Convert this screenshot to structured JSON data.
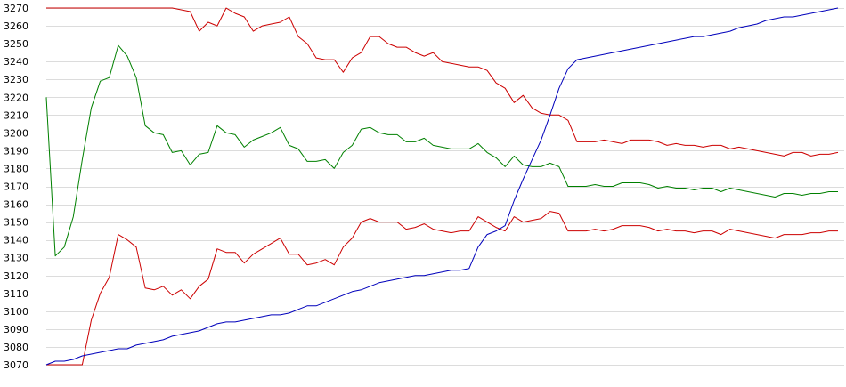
{
  "chart_data": {
    "type": "line",
    "title": "",
    "xlabel": "",
    "ylabel": "",
    "ylim": [
      3070,
      3270
    ],
    "y_ticks": [
      3070,
      3080,
      3090,
      3100,
      3110,
      3120,
      3130,
      3140,
      3150,
      3160,
      3170,
      3180,
      3190,
      3200,
      3210,
      3220,
      3230,
      3240,
      3250,
      3260,
      3270
    ],
    "y_tick_labels": [
      "3070",
      "3080",
      "3090",
      "3100",
      "3110",
      "3120",
      "3130",
      "3140",
      "3150",
      "3160",
      "3170",
      "3180",
      "3190",
      "3200",
      "3210",
      "3220",
      "3230",
      "3240",
      "3250",
      "3260",
      "3270"
    ],
    "x_range": [
      0,
      88
    ],
    "grid": "horizontal",
    "legend": "none",
    "series": [
      {
        "color": "#cc0000",
        "values": [
          3270,
          3270,
          3270,
          3270,
          3270,
          3270,
          3270,
          3270,
          3270,
          3270,
          3270,
          3270,
          3270,
          3270,
          3270,
          3269,
          3268,
          3257,
          3262,
          3260,
          3270,
          3267,
          3265,
          3257,
          3260,
          3261,
          3262,
          3265,
          3254,
          3250,
          3242,
          3241,
          3241,
          3234,
          3242,
          3245,
          3254,
          3254,
          3250,
          3248,
          3248,
          3245,
          3243,
          3245,
          3240,
          3239,
          3238,
          3237,
          3237,
          3235,
          3228,
          3225,
          3217,
          3221,
          3214,
          3211,
          3210,
          3210,
          3207,
          3195,
          3195,
          3195,
          3196,
          3195,
          3194,
          3196,
          3196,
          3196,
          3195,
          3193,
          3194,
          3193,
          3193,
          3192,
          3193,
          3193,
          3191,
          3192,
          3191,
          3190,
          3189,
          3188,
          3187,
          3189,
          3189,
          3187,
          3188,
          3188,
          3189
        ]
      },
      {
        "color": "#008000",
        "values": [
          3220,
          3131,
          3136,
          3153,
          3185,
          3214,
          3229,
          3231,
          3249,
          3243,
          3231,
          3204,
          3200,
          3199,
          3189,
          3190,
          3182,
          3188,
          3189,
          3204,
          3200,
          3199,
          3192,
          3196,
          3198,
          3200,
          3203,
          3193,
          3191,
          3184,
          3184,
          3185,
          3180,
          3189,
          3193,
          3202,
          3203,
          3200,
          3199,
          3199,
          3195,
          3195,
          3197,
          3193,
          3192,
          3191,
          3191,
          3191,
          3194,
          3189,
          3186,
          3181,
          3187,
          3182,
          3181,
          3181,
          3183,
          3181,
          3170,
          3170,
          3170,
          3171,
          3170,
          3170,
          3172,
          3172,
          3172,
          3171,
          3169,
          3170,
          3169,
          3169,
          3168,
          3169,
          3169,
          3167,
          3169,
          3168,
          3167,
          3166,
          3165,
          3164,
          3166,
          3166,
          3165,
          3166,
          3166,
          3167,
          3167
        ]
      },
      {
        "color": "#cc0000",
        "values": [
          3070,
          3070,
          3070,
          3070,
          3070,
          3095,
          3110,
          3119,
          3143,
          3140,
          3136,
          3113,
          3112,
          3114,
          3109,
          3112,
          3107,
          3114,
          3118,
          3135,
          3133,
          3133,
          3127,
          3132,
          3135,
          3138,
          3141,
          3132,
          3132,
          3126,
          3127,
          3129,
          3126,
          3136,
          3141,
          3150,
          3152,
          3150,
          3150,
          3150,
          3146,
          3147,
          3149,
          3146,
          3145,
          3144,
          3145,
          3145,
          3153,
          3150,
          3147,
          3145,
          3153,
          3150,
          3151,
          3152,
          3156,
          3155,
          3145,
          3145,
          3145,
          3146,
          3145,
          3146,
          3148,
          3148,
          3148,
          3147,
          3145,
          3146,
          3145,
          3145,
          3144,
          3145,
          3145,
          3143,
          3146,
          3145,
          3144,
          3143,
          3142,
          3141,
          3143,
          3143,
          3143,
          3144,
          3144,
          3145,
          3145
        ]
      },
      {
        "color": "#0000bb",
        "values": [
          3070,
          3072,
          3072,
          3073,
          3075,
          3076,
          3077,
          3078,
          3079,
          3079,
          3081,
          3082,
          3083,
          3084,
          3086,
          3087,
          3088,
          3089,
          3091,
          3093,
          3094,
          3094,
          3095,
          3096,
          3097,
          3098,
          3098,
          3099,
          3101,
          3103,
          3103,
          3105,
          3107,
          3109,
          3111,
          3112,
          3114,
          3116,
          3117,
          3118,
          3119,
          3120,
          3120,
          3121,
          3122,
          3123,
          3123,
          3124,
          3136,
          3143,
          3145,
          3148,
          3162,
          3174,
          3185,
          3196,
          3210,
          3225,
          3236,
          3241,
          3242,
          3243,
          3244,
          3245,
          3246,
          3247,
          3248,
          3249,
          3250,
          3251,
          3252,
          3253,
          3254,
          3254,
          3255,
          3256,
          3257,
          3259,
          3260,
          3261,
          3263,
          3264,
          3265,
          3265,
          3266,
          3267,
          3268,
          3269,
          3270
        ]
      }
    ]
  }
}
